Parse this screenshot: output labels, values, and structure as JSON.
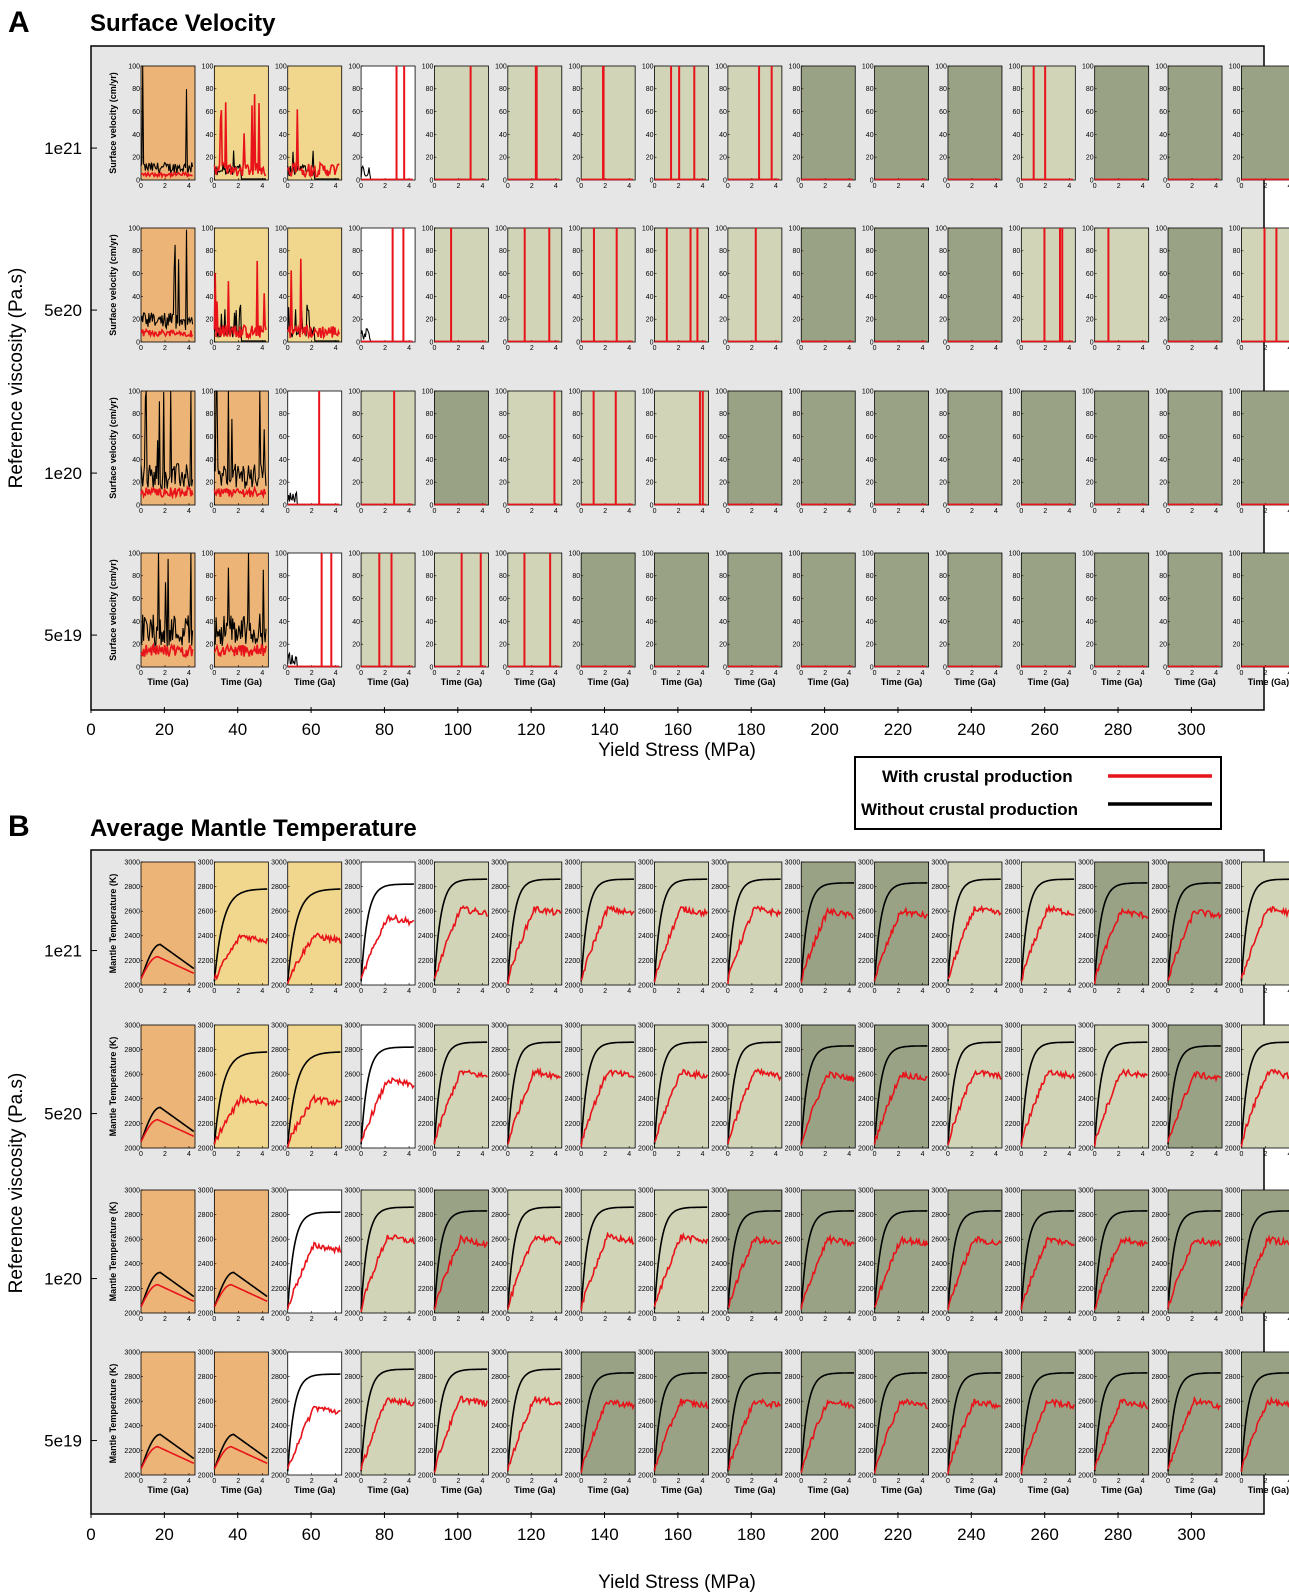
{
  "chart_data": [
    {
      "type": "line",
      "panel_letter": "A",
      "title": "Surface Velocity",
      "xlabel": "Yield Stress (MPa)",
      "ylabel": "Reference viscosity (Pa.s)",
      "x_ticks": [
        "0",
        "20",
        "40",
        "60",
        "80",
        "100",
        "120",
        "140",
        "160",
        "180",
        "200",
        "220",
        "240",
        "260",
        "280",
        "300"
      ],
      "row_labels": [
        "1e21",
        "5e20",
        "1e20",
        "5e19"
      ],
      "subplot_ylabel": "Surface velocity (cm/yr)",
      "subplot_xlabel": "Time (Ga)",
      "subplot_yticks": [
        "0",
        "20",
        "40",
        "60",
        "80",
        "100"
      ],
      "subplot_xticks": [
        "0",
        "2",
        "4"
      ],
      "ylim": [
        0,
        100
      ],
      "xlim": [
        0,
        4.5
      ],
      "yield_stress_columns": [
        10,
        30,
        50,
        70,
        90,
        110,
        130,
        150,
        170,
        190,
        210,
        230,
        250,
        270,
        290,
        310
      ],
      "regimes": [
        [
          "E",
          "L",
          "L",
          "W",
          "G",
          "G",
          "G",
          "G",
          "G",
          "D",
          "D",
          "D",
          "G",
          "D",
          "D",
          "D"
        ],
        [
          "E",
          "L",
          "L",
          "W",
          "G",
          "G",
          "G",
          "G",
          "G",
          "D",
          "D",
          "D",
          "G",
          "G",
          "D",
          "G"
        ],
        [
          "E",
          "E",
          "W",
          "G",
          "D",
          "G",
          "G",
          "G",
          "D",
          "D",
          "D",
          "D",
          "D",
          "D",
          "D",
          "D"
        ],
        [
          "E",
          "E",
          "W",
          "G",
          "G",
          "G",
          "D",
          "D",
          "D",
          "D",
          "D",
          "D",
          "D",
          "D",
          "D",
          "D"
        ]
      ]
    },
    {
      "type": "line",
      "panel_letter": "B",
      "title": "Average Mantle Temperature",
      "xlabel": "Yield Stress (MPa)",
      "ylabel": "Reference viscosity (Pa.s)",
      "x_ticks": [
        "0",
        "20",
        "40",
        "60",
        "80",
        "100",
        "120",
        "140",
        "160",
        "180",
        "200",
        "220",
        "240",
        "260",
        "280",
        "300"
      ],
      "row_labels": [
        "1e21",
        "5e20",
        "1e20",
        "5e19"
      ],
      "subplot_ylabel": "Mantle Temperature (K)",
      "subplot_xlabel": "Time (Ga)",
      "subplot_yticks": [
        "2000",
        "2200",
        "2400",
        "2600",
        "2800",
        "3000"
      ],
      "subplot_xticks": [
        "0",
        "2",
        "4"
      ],
      "ylim": [
        2000,
        3000
      ],
      "xlim": [
        0,
        4.5
      ],
      "yield_stress_columns": [
        10,
        30,
        50,
        70,
        90,
        110,
        130,
        150,
        170,
        190,
        210,
        230,
        250,
        270,
        290,
        310
      ],
      "regimes": [
        [
          "E",
          "L",
          "L",
          "W",
          "G",
          "G",
          "G",
          "G",
          "G",
          "D",
          "D",
          "G",
          "G",
          "D",
          "D",
          "G"
        ],
        [
          "E",
          "L",
          "L",
          "W",
          "G",
          "G",
          "G",
          "G",
          "G",
          "D",
          "D",
          "G",
          "G",
          "G",
          "D",
          "G"
        ],
        [
          "E",
          "E",
          "W",
          "G",
          "D",
          "G",
          "G",
          "G",
          "D",
          "D",
          "D",
          "D",
          "D",
          "D",
          "D",
          "D"
        ],
        [
          "E",
          "E",
          "W",
          "G",
          "G",
          "G",
          "D",
          "D",
          "D",
          "D",
          "D",
          "D",
          "D",
          "D",
          "D",
          "D"
        ]
      ]
    }
  ],
  "legend": {
    "with_label": "With crustal production",
    "without_label": "Without crustal production",
    "with_color": "#e8131a",
    "without_color": "#000000"
  },
  "colors": {
    "E": "#ecb577",
    "L": "#f1d68d",
    "W": "#ffffff",
    "G": "#d1d4b7",
    "D": "#9aa285",
    "panel_bg": "#e6e6e6"
  }
}
